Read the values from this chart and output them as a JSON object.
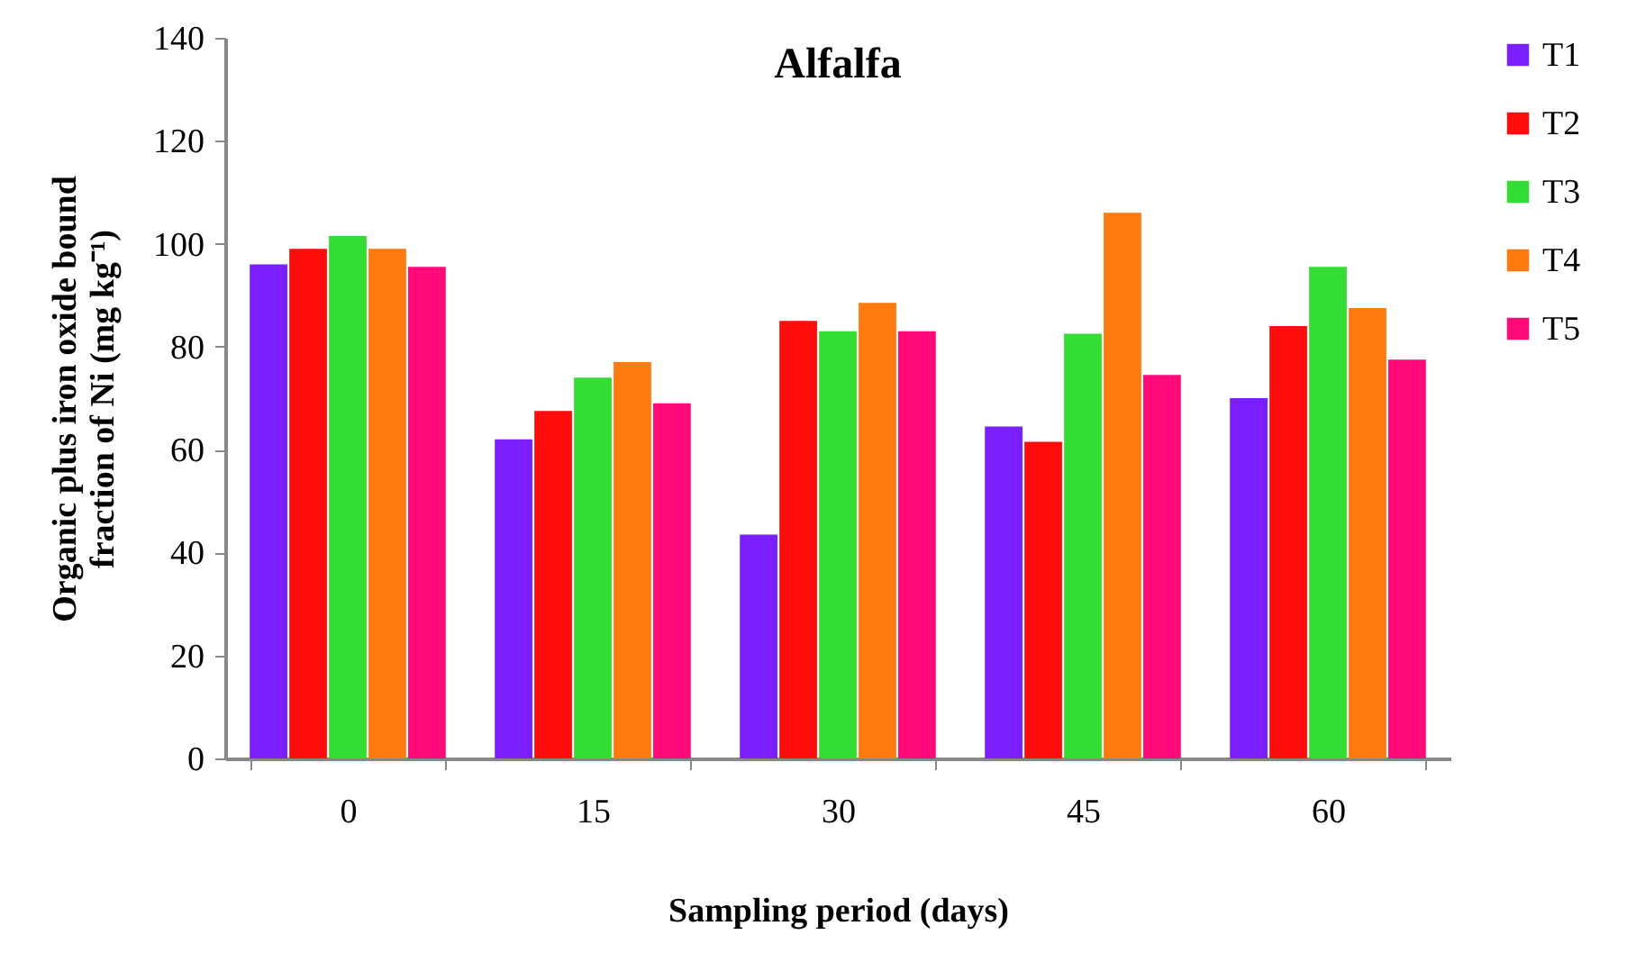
{
  "chart_data": {
    "type": "bar",
    "title": "Alfalfa",
    "xlabel": "Sampling period (days)",
    "ylabel": "Organic plus iron oxide bound fraction of Ni (mg kg⁻¹)",
    "categories": [
      "0",
      "15",
      "30",
      "45",
      "60"
    ],
    "series": [
      {
        "name": "T1",
        "color": "#7a1fff",
        "values": [
          96,
          62,
          43.5,
          64.5,
          70
        ]
      },
      {
        "name": "T2",
        "color": "#ff0d0d",
        "values": [
          99,
          67.5,
          85,
          61.5,
          84
        ]
      },
      {
        "name": "T3",
        "color": "#33dd33",
        "values": [
          101.5,
          74,
          83,
          82.5,
          95.5
        ]
      },
      {
        "name": "T4",
        "color": "#ff7a0f",
        "values": [
          99,
          77,
          88.5,
          106,
          87.5
        ]
      },
      {
        "name": "T5",
        "color": "#ff0a78",
        "values": [
          95.5,
          69,
          83,
          74.5,
          77.5
        ]
      }
    ],
    "ylim": [
      0,
      140
    ],
    "yticks": [
      0,
      20,
      40,
      60,
      80,
      100,
      120,
      140
    ],
    "grid": false,
    "legend": "right"
  }
}
